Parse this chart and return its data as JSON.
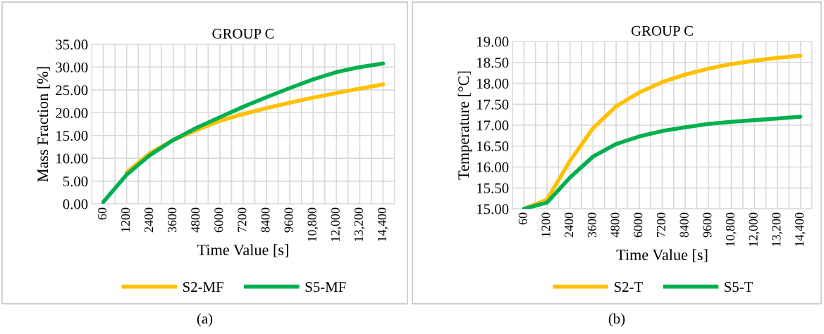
{
  "chart_data": [
    {
      "type": "line",
      "title": "GROUP C",
      "xlabel": "Time Value [s]",
      "ylabel": "Mass Fraction [%]",
      "categories": [
        "60",
        "1200",
        "2400",
        "3600",
        "4800",
        "6000",
        "7200",
        "8400",
        "9600",
        "10,800",
        "12,000",
        "13,200",
        "14,400"
      ],
      "series": [
        {
          "name": "S2-MF",
          "color": "#ffc000",
          "values": [
            null,
            6.9,
            11.1,
            14.0,
            16.2,
            18.2,
            19.7,
            21.0,
            22.2,
            23.3,
            24.3,
            25.3,
            26.2
          ]
        },
        {
          "name": "S5-MF",
          "color": "#00b050",
          "values": [
            0.4,
            6.4,
            10.7,
            14.0,
            16.7,
            19.0,
            21.3,
            23.4,
            25.4,
            27.3,
            28.9,
            30.0,
            30.8
          ]
        }
      ],
      "ylim": [
        0,
        35
      ],
      "yticks": [
        {
          "value": 0,
          "label": "0.00"
        },
        {
          "value": 5,
          "label": "5.00"
        },
        {
          "value": 10,
          "label": "10.00"
        },
        {
          "value": 15,
          "label": "15.00"
        },
        {
          "value": 20,
          "label": "20.00"
        },
        {
          "value": 25,
          "label": "25.00"
        },
        {
          "value": 30,
          "label": "30.00"
        },
        {
          "value": 35,
          "label": "35.00"
        }
      ],
      "grid": true,
      "legend": "bottom",
      "marker": "none",
      "line_style": "solid",
      "annotations": [
        "(a)"
      ]
    },
    {
      "type": "line",
      "title": "GROUP C",
      "xlabel": "Time Value [s]",
      "ylabel": "Temperature [°C]",
      "categories": [
        "60",
        "1200",
        "2400",
        "3600",
        "4800",
        "6000",
        "7200",
        "8400",
        "9600",
        "10,800",
        "12,000",
        "13,200",
        "14,400"
      ],
      "series": [
        {
          "name": "S2-T",
          "color": "#ffc000",
          "values": [
            15.0,
            15.22,
            16.15,
            16.93,
            17.45,
            17.78,
            18.03,
            18.21,
            18.35,
            18.46,
            18.54,
            18.61,
            18.66
          ]
        },
        {
          "name": "S5-T",
          "color": "#00b050",
          "values": [
            15.0,
            15.15,
            15.75,
            16.25,
            16.55,
            16.73,
            16.86,
            16.95,
            17.03,
            17.08,
            17.12,
            17.16,
            17.2
          ]
        }
      ],
      "ylim": [
        15,
        19
      ],
      "yticks": [
        {
          "value": 15,
          "label": "15.00"
        },
        {
          "value": 15.5,
          "label": "15.50"
        },
        {
          "value": 16,
          "label": "16.00"
        },
        {
          "value": 16.5,
          "label": "16.50"
        },
        {
          "value": 17,
          "label": "17.00"
        },
        {
          "value": 17.5,
          "label": "17.50"
        },
        {
          "value": 18,
          "label": "18.00"
        },
        {
          "value": 18.5,
          "label": "18.50"
        },
        {
          "value": 19,
          "label": "19.00"
        }
      ],
      "grid": true,
      "legend": "bottom",
      "marker": "none",
      "line_style": "solid",
      "annotations": [
        "(b)"
      ]
    }
  ]
}
